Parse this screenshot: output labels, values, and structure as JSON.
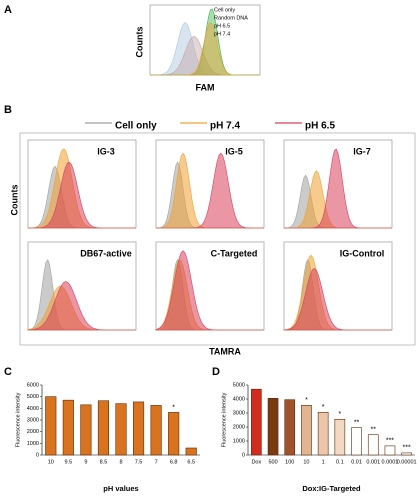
{
  "panel_labels": [
    "A",
    "B",
    "C",
    "D"
  ],
  "flow_a": {
    "legend": [
      {
        "name": "Cell only",
        "color": "#a9c6e0"
      },
      {
        "name": "Random DNA",
        "color": "#c4a5a5"
      },
      {
        "name": "pH 6.5",
        "color": "#3bb54a"
      },
      {
        "name": "pH 7.4",
        "color": "#f0a030"
      }
    ],
    "x_label": "FAM",
    "y_label": "Counts"
  },
  "flow_b": {
    "legend": [
      {
        "name": "Cell only",
        "color": "#a0a0a0"
      },
      {
        "name": "pH 7.4",
        "color": "#f0a030"
      },
      {
        "name": "pH 6.5",
        "color": "#d8405a"
      }
    ],
    "titles": [
      "IG-3",
      "IG-5",
      "IG-7",
      "DB67-active",
      "C-Targeted",
      "IG-Control"
    ],
    "x_label": "TAMRA",
    "y_label": "Counts"
  },
  "chart_data": [
    {
      "type": "bar",
      "categories": [
        "10",
        "9.5",
        "9",
        "8.5",
        "8",
        "7.5",
        "7",
        "6.8",
        "6.5"
      ],
      "values": [
        5000,
        4700,
        4300,
        4650,
        4400,
        4550,
        4250,
        3650,
        600
      ],
      "significance": [
        null,
        null,
        null,
        null,
        null,
        null,
        null,
        "*",
        null
      ],
      "color": "#d9731f",
      "x_label": "pH values",
      "y_label": "Fluorescence intensity",
      "ylim": [
        0,
        6000
      ],
      "yticks": [
        0,
        1000,
        2000,
        3000,
        4000,
        5000,
        6000
      ]
    },
    {
      "type": "bar",
      "categories": [
        "Dox",
        "500",
        "100",
        "10",
        "1",
        "0.1",
        "0.01",
        "0.001",
        "0.0001",
        "0.00001"
      ],
      "values": [
        4700,
        4050,
        3950,
        3550,
        3050,
        2550,
        1950,
        1450,
        650,
        150
      ],
      "significance": [
        null,
        null,
        null,
        "*",
        "*",
        "*",
        "**",
        "**",
        "***",
        "***"
      ],
      "colors": [
        "#d42a1e",
        "#7a3a12",
        "#a0522d",
        "#e2b490",
        "#ecc6a8",
        "#f3d8c4",
        "#ffffff",
        "#ffffff",
        "#ffffff",
        "#ffffff"
      ],
      "x_label": "Dox:IG-Targeted",
      "y_label": "Fluorescence intensity",
      "ylim": [
        0,
        5000
      ],
      "yticks": [
        0,
        1000,
        2000,
        3000,
        4000,
        5000
      ]
    }
  ]
}
